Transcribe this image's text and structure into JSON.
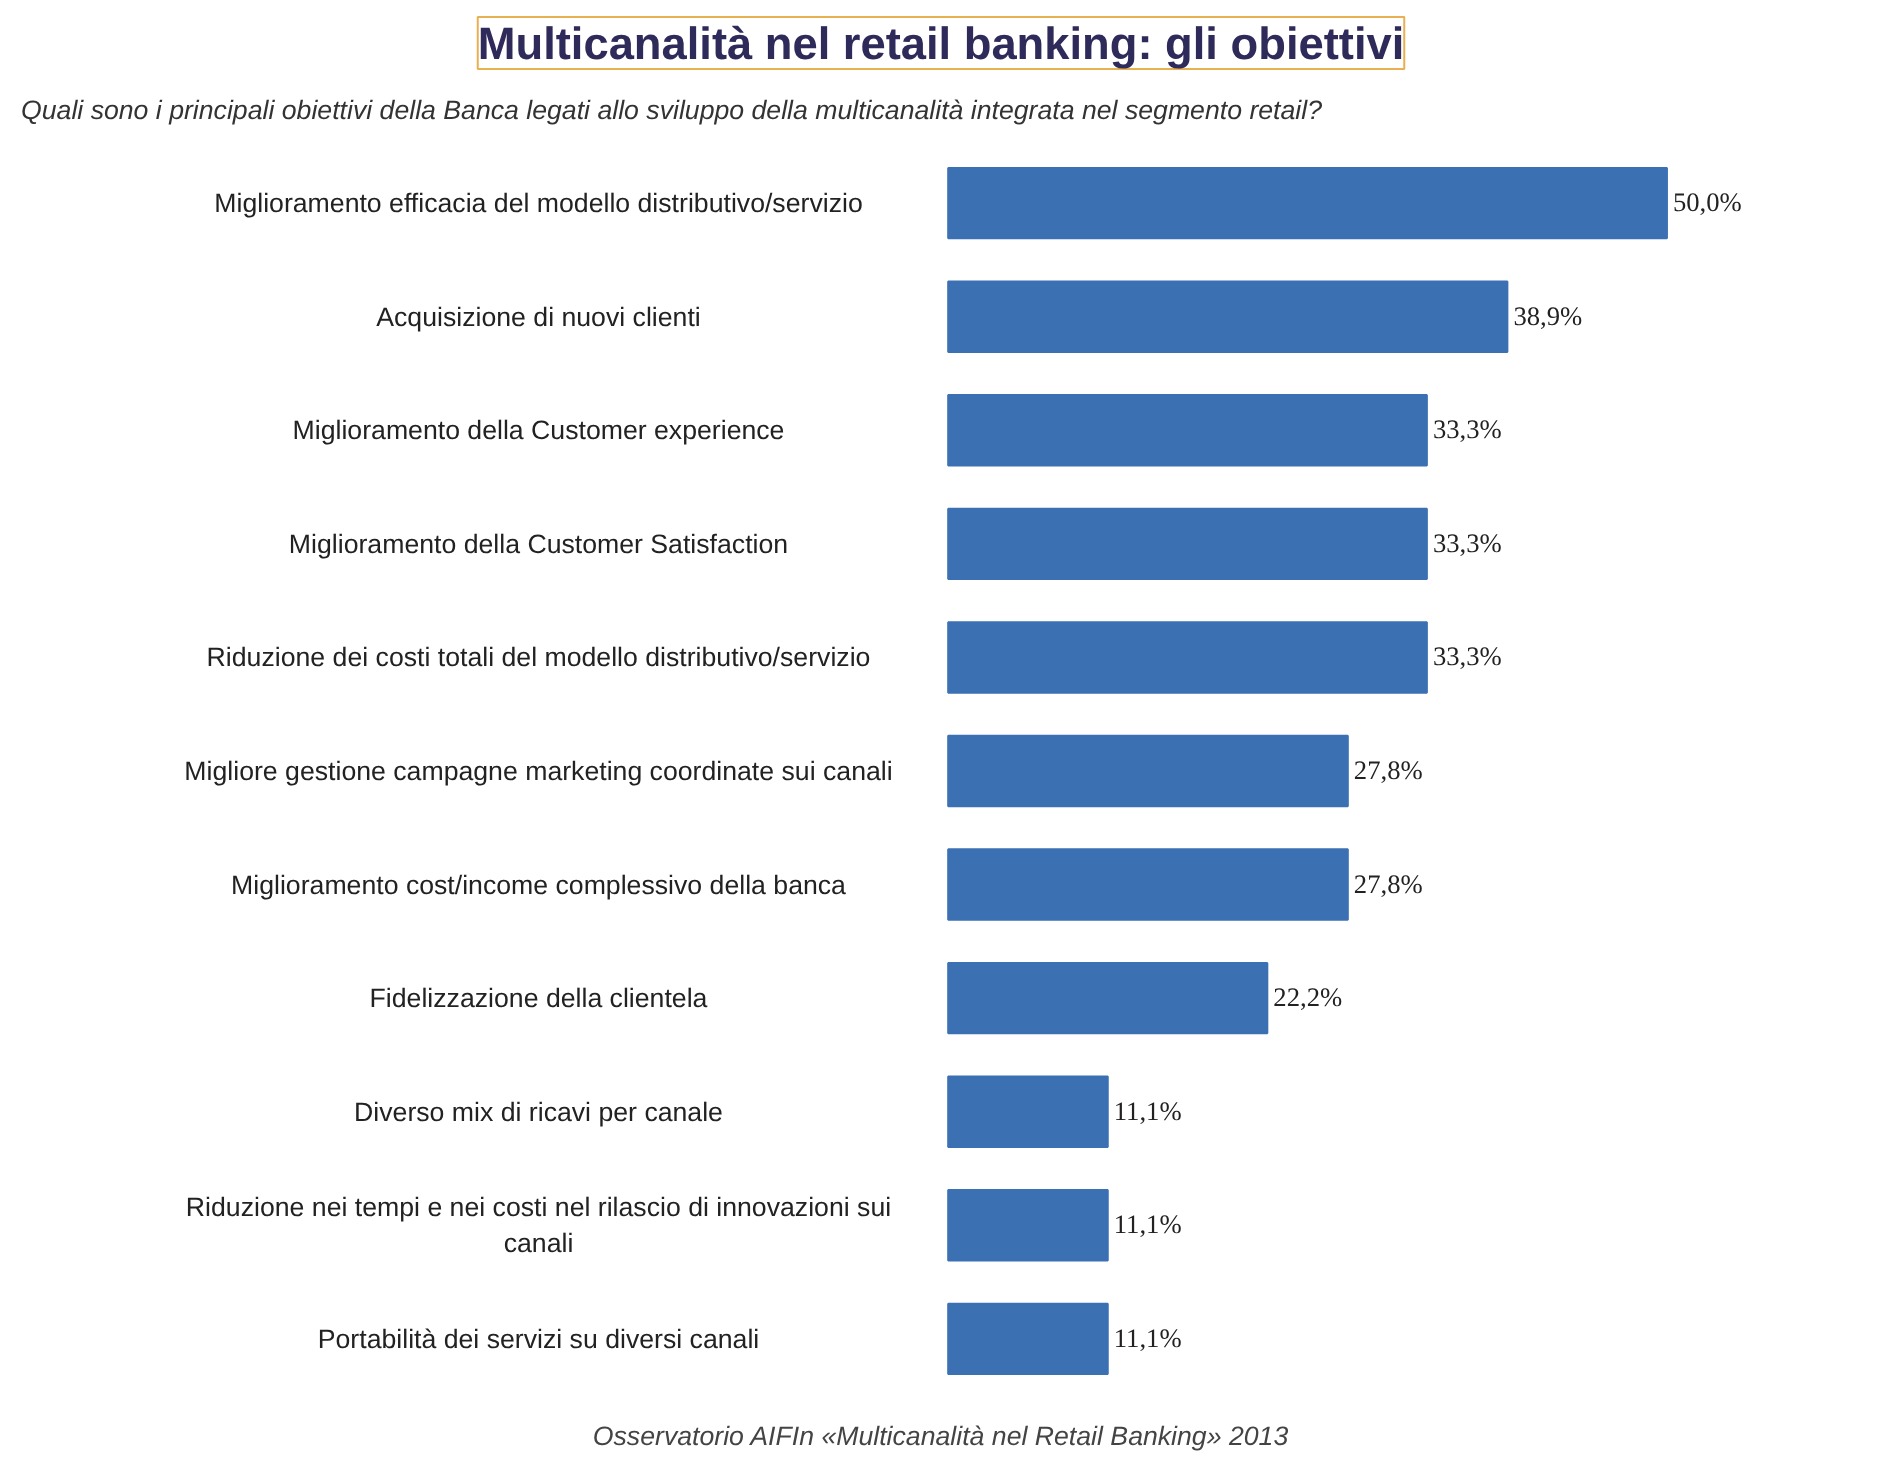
{
  "chart_data": {
    "type": "bar",
    "orientation": "horizontal",
    "title": "Multicanalità nel retail banking: gli obiettivi",
    "subtitle": "Quali sono i principali obiettivi della Banca legati allo sviluppo della multicanalità integrata nel segmento retail?",
    "categories": [
      "Miglioramento efficacia del modello distributivo/servizio",
      "Acquisizione di nuovi clienti",
      "Miglioramento della Customer experience",
      "Miglioramento della Customer Satisfaction",
      "Riduzione dei costi totali del modello distributivo/servizio",
      "Migliore gestione campagne marketing coordinate sui canali",
      "Miglioramento cost/income complessivo della banca",
      "Fidelizzazione della clientela",
      "Diverso mix di ricavi per canale",
      "Riduzione nei tempi e nei costi nel rilascio di innovazioni sui\ncanali",
      "Portabilità dei servizi su diversi canali"
    ],
    "values": [
      50.0,
      38.9,
      33.3,
      33.3,
      33.3,
      27.8,
      27.8,
      22.2,
      11.1,
      11.1,
      11.1
    ],
    "value_labels": [
      "50,0%",
      "38,9%",
      "33,3%",
      "33,3%",
      "33,3%",
      "27,8%",
      "27,8%",
      "22,2%",
      "11,1%",
      "11,1%",
      "11,1%"
    ],
    "color": "#3b70b3",
    "grid": false,
    "tick_labels": "y",
    "annotations": [
      "Osservatorio AIFIn «Multicanalità nel Retail Banking» 2013"
    ]
  }
}
